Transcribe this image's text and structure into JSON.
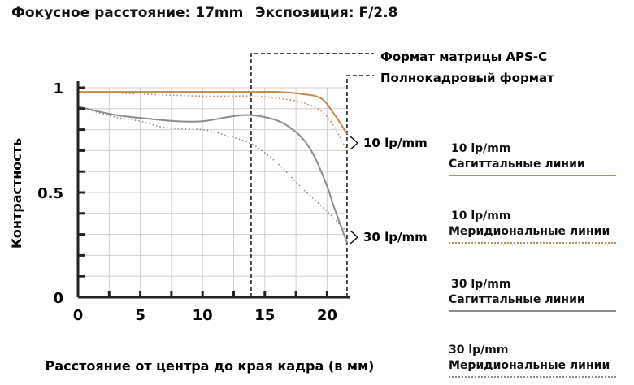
{
  "header": {
    "focal_length": "Фокусное расстояние: 17mm",
    "exposure": "Экспозиция: F/2.8"
  },
  "annotations": {
    "aps_c": "Формат матрицы APS-C",
    "full_frame": "Полнокадровый формат",
    "lp10": "10 lp/mm",
    "lp30": "30 lp/mm"
  },
  "legend": [
    {
      "line1": "10 lp/mm",
      "line2": "Сагиттальные линии",
      "color": "#c08a4e",
      "style": "solid"
    },
    {
      "line1": "10 lp/mm",
      "line2": "Меридиональные линии",
      "color": "#c08a4e",
      "style": "dotted"
    },
    {
      "line1": "30 lp/mm",
      "line2": "Сагиттальные линии",
      "color": "#8c8c8c",
      "style": "solid"
    },
    {
      "line1": "30 lp/mm",
      "line2": "Меридиональные линии",
      "color": "#8c8c8c",
      "style": "dotted"
    }
  ],
  "chart_data": {
    "type": "line",
    "title": "",
    "xlabel": "Расстояние от центра до края кадра (в мм)",
    "ylabel": "Контрастность",
    "xlim": [
      0,
      21.6
    ],
    "ylim": [
      0,
      1
    ],
    "x_ticks": [
      "0",
      "5",
      "10",
      "15",
      "20"
    ],
    "y_ticks": [
      "0",
      "0.5",
      "1"
    ],
    "grid": true,
    "vlines": [
      {
        "x": 13.9,
        "label": "Формат матрицы APS-C"
      },
      {
        "x": 21.6,
        "label": "Полнокадровый формат"
      }
    ],
    "series": [
      {
        "name": "10 lp/mm Сагиттальные линии",
        "color": "#c08a4e",
        "dash": "solid",
        "x": [
          0,
          5,
          10,
          14,
          16,
          18,
          19.5,
          20.5,
          21.6
        ],
        "y": [
          0.98,
          0.98,
          0.98,
          0.98,
          0.98,
          0.97,
          0.95,
          0.88,
          0.78
        ]
      },
      {
        "name": "10 lp/mm Меридиональные линии",
        "color": "#c08a4e",
        "dash": "dotted",
        "x": [
          0,
          5,
          10,
          14,
          16,
          18,
          19.5,
          20.5,
          21.6
        ],
        "y": [
          0.98,
          0.97,
          0.96,
          0.96,
          0.95,
          0.93,
          0.89,
          0.82,
          0.7
        ]
      },
      {
        "name": "30 lp/mm Сагиттальные линии",
        "color": "#8c8c8c",
        "dash": "solid",
        "x": [
          0,
          3,
          6,
          8,
          10,
          12,
          13.5,
          15,
          16.5,
          18,
          19,
          20,
          20.5,
          21.6
        ],
        "y": [
          0.91,
          0.87,
          0.85,
          0.84,
          0.84,
          0.86,
          0.87,
          0.86,
          0.83,
          0.76,
          0.67,
          0.53,
          0.44,
          0.26
        ]
      },
      {
        "name": "30 lp/mm Меридиональные линии",
        "color": "#8c8c8c",
        "dash": "dotted",
        "x": [
          0,
          3,
          5,
          7,
          10,
          12,
          14,
          16,
          18,
          20,
          21.6
        ],
        "y": [
          0.91,
          0.86,
          0.84,
          0.81,
          0.8,
          0.77,
          0.73,
          0.64,
          0.52,
          0.41,
          0.31
        ]
      }
    ]
  }
}
